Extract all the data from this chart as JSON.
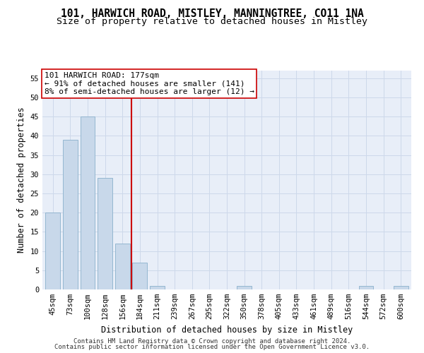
{
  "title1": "101, HARWICH ROAD, MISTLEY, MANNINGTREE, CO11 1NA",
  "title2": "Size of property relative to detached houses in Mistley",
  "xlabel": "Distribution of detached houses by size in Mistley",
  "ylabel": "Number of detached properties",
  "categories": [
    "45sqm",
    "73sqm",
    "100sqm",
    "128sqm",
    "156sqm",
    "184sqm",
    "211sqm",
    "239sqm",
    "267sqm",
    "295sqm",
    "322sqm",
    "350sqm",
    "378sqm",
    "405sqm",
    "433sqm",
    "461sqm",
    "489sqm",
    "516sqm",
    "544sqm",
    "572sqm",
    "600sqm"
  ],
  "values": [
    20,
    39,
    45,
    29,
    12,
    7,
    1,
    0,
    0,
    0,
    0,
    1,
    0,
    0,
    0,
    0,
    0,
    0,
    1,
    0,
    1
  ],
  "bar_color": "#c8d8ea",
  "bar_edge_color": "#8ab0cc",
  "vline_x_index": 5,
  "vline_color": "#cc0000",
  "annotation_line1": "101 HARWICH ROAD: 177sqm",
  "annotation_line2": "← 91% of detached houses are smaller (141)",
  "annotation_line3": "8% of semi-detached houses are larger (12) →",
  "annotation_box_color": "#ffffff",
  "annotation_box_edge": "#cc0000",
  "ylim": [
    0,
    57
  ],
  "yticks": [
    0,
    5,
    10,
    15,
    20,
    25,
    30,
    35,
    40,
    45,
    50,
    55
  ],
  "grid_color": "#cdd8ea",
  "background_color": "#e8eef8",
  "footer1": "Contains HM Land Registry data © Crown copyright and database right 2024.",
  "footer2": "Contains public sector information licensed under the Open Government Licence v3.0.",
  "title1_fontsize": 10.5,
  "title2_fontsize": 9.5,
  "tick_fontsize": 7.5,
  "ylabel_fontsize": 8.5,
  "xlabel_fontsize": 8.5,
  "footer_fontsize": 6.5,
  "annotation_fontsize": 8.0
}
